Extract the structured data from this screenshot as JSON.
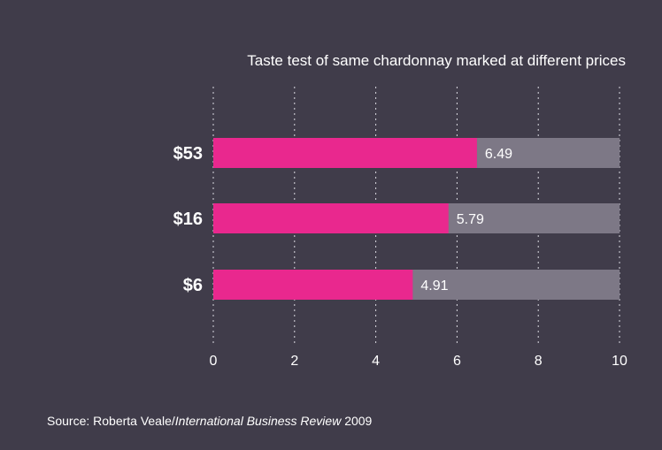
{
  "chart_data": {
    "type": "bar",
    "orientation": "horizontal",
    "title": "Taste test of same chardonnay marked at different prices",
    "categories": [
      "$53",
      "$16",
      "$6"
    ],
    "values": [
      6.49,
      5.79,
      4.91
    ],
    "value_labels": [
      "6.49",
      "5.79",
      "4.91"
    ],
    "max_value": 10,
    "xlim": [
      0,
      10
    ],
    "xticks": [
      0,
      2,
      4,
      6,
      8,
      10
    ],
    "xlabel": "",
    "ylabel": "",
    "grid": true,
    "bar_color": "#e9288e",
    "remainder_color": "#7d7886"
  },
  "source": {
    "prefix": "Source: Roberta Veale/",
    "journal": "International Business Review",
    "suffix": " 2009"
  },
  "colors": {
    "background": "#403c4a",
    "text": "#ffffff"
  }
}
